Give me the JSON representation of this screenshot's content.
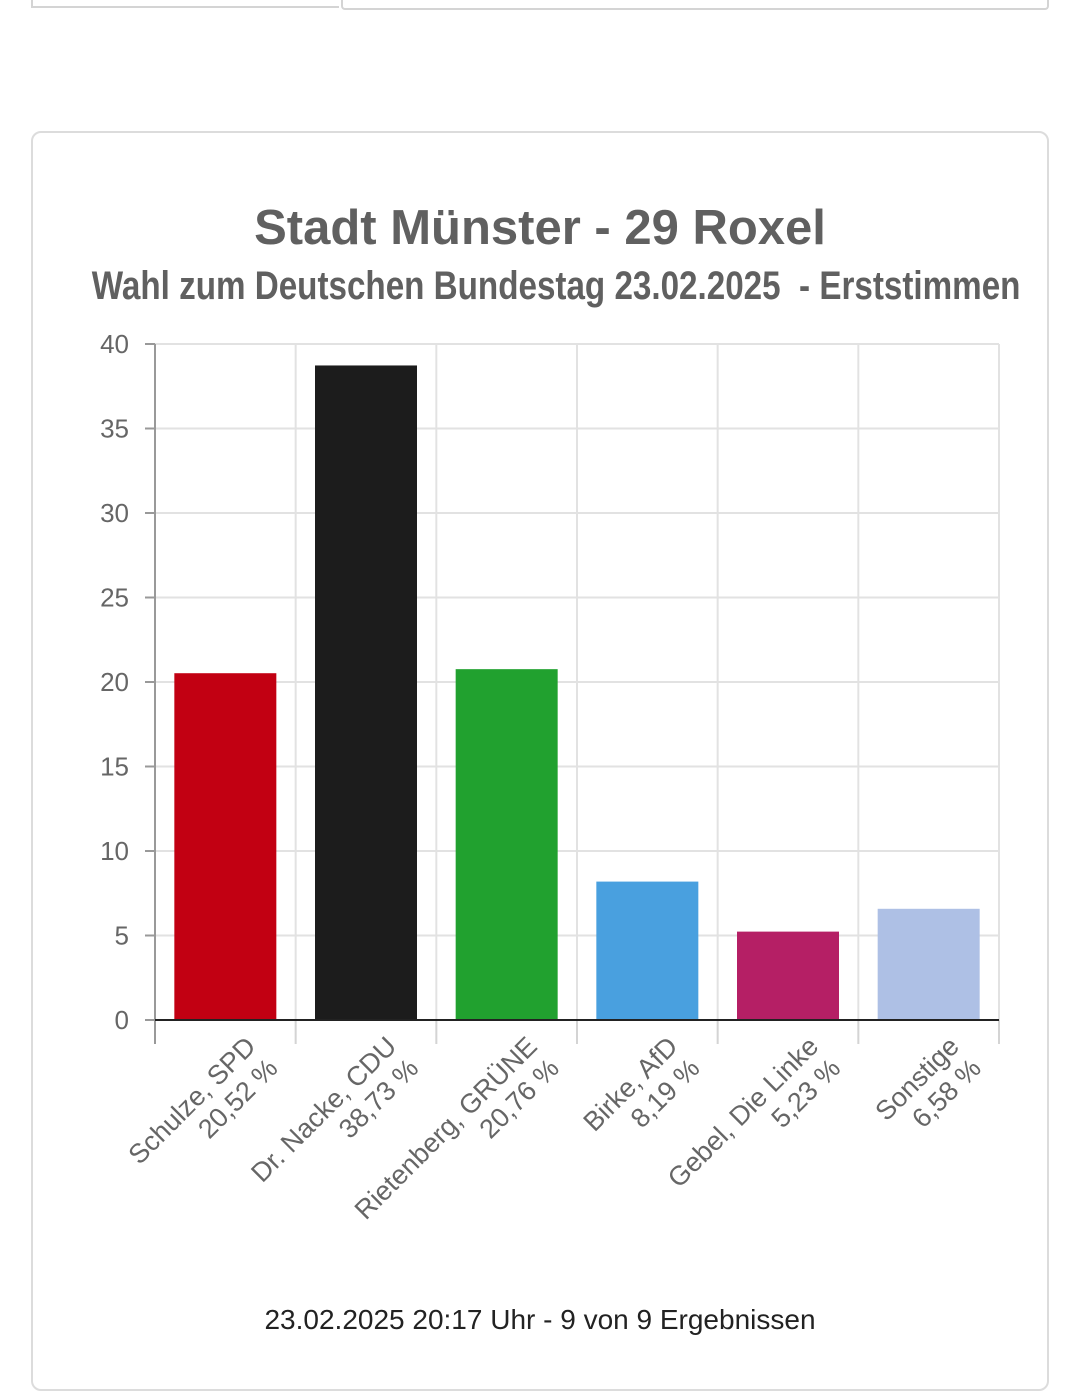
{
  "chart_data": {
    "type": "bar",
    "title": "Stadt Münster - 29 Roxel",
    "subtitle": "Wahl zum Deutschen Bundestag 23.02.2025  - Erststimmen",
    "categories": [
      [
        "Schulze, SPD",
        "20,52 %"
      ],
      [
        "Dr. Nacke, CDU",
        "38,73 %"
      ],
      [
        "Rietenberg, GRÜNE",
        "20,76 %"
      ],
      [
        "Birke, AfD",
        "8,19 %"
      ],
      [
        "Gebel, Die Linke",
        "5,23 %"
      ],
      [
        "Sonstige",
        "6,58 %"
      ]
    ],
    "values": [
      20.52,
      38.73,
      20.76,
      8.19,
      5.23,
      6.58
    ],
    "colors": [
      "#c20012",
      "#1c1c1c",
      "#21a12f",
      "#49a0df",
      "#b51f65",
      "#aec0e5"
    ],
    "ylim": [
      0,
      40
    ],
    "yticks": [
      0,
      5,
      10,
      15,
      20,
      25,
      30,
      35,
      40
    ],
    "grid": true
  },
  "footer": "23.02.2025 20:17 Uhr - 9 von 9 Ergebnissen"
}
